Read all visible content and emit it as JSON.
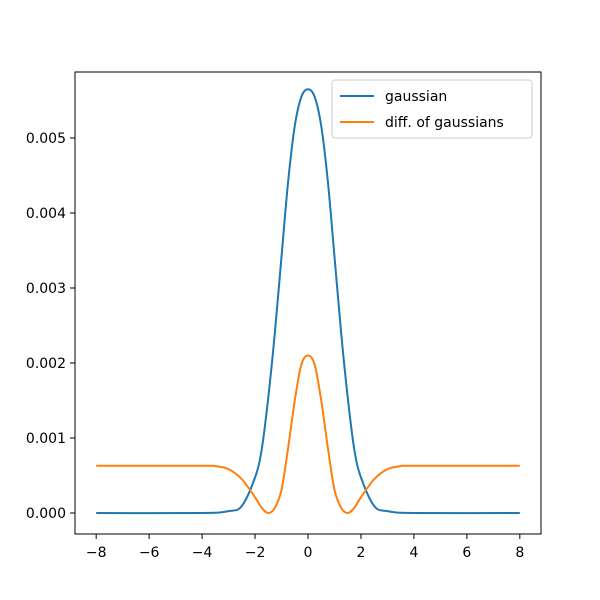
{
  "chart_data": {
    "type": "line",
    "title": "",
    "xlabel": "",
    "ylabel": "",
    "xlim": [
      -8.8,
      8.8
    ],
    "ylim": [
      -0.00028,
      0.00588
    ],
    "grid": false,
    "legend_position": "top-right",
    "x_ticks": [
      -8,
      -6,
      -4,
      -2,
      0,
      2,
      4,
      6,
      8
    ],
    "x_tick_labels": [
      "−8",
      "−6",
      "−4",
      "−2",
      "0",
      "2",
      "4",
      "6",
      "8"
    ],
    "y_ticks": [
      0.0,
      0.001,
      0.002,
      0.003,
      0.004,
      0.005
    ],
    "y_tick_labels": [
      "0.000",
      "0.001",
      "0.002",
      "0.003",
      "0.004",
      "0.005"
    ],
    "series": [
      {
        "name": "gaussian",
        "color": "#1f77b4",
        "x": [
          -8,
          -4,
          -3,
          -2.5,
          -2,
          -1.75,
          -1.5,
          -1.25,
          -1,
          -0.75,
          -0.5,
          -0.25,
          0,
          0.25,
          0.5,
          0.75,
          1,
          1.25,
          1.5,
          1.75,
          2,
          2.5,
          3,
          4,
          8
        ],
        "y": [
          0.0,
          0.0,
          2.5e-05,
          9.4e-05,
          0.000475,
          0.000843,
          0.00154,
          0.00241,
          0.00342,
          0.00442,
          0.00516,
          0.00555,
          0.00565,
          0.00555,
          0.00516,
          0.00442,
          0.00342,
          0.00241,
          0.00154,
          0.000843,
          0.000475,
          9.4e-05,
          2.5e-05,
          0.0,
          0.0
        ]
      },
      {
        "name": "diff. of gaussians",
        "color": "#ff7f0e",
        "x": [
          -8,
          -4,
          -3.5,
          -3,
          -2.5,
          -2,
          -1.75,
          -1.5,
          -1.25,
          -1,
          -0.75,
          -0.5,
          -0.25,
          0,
          0.25,
          0.5,
          0.75,
          1,
          1.25,
          1.5,
          1.75,
          2,
          2.5,
          3,
          3.5,
          4,
          8
        ],
        "y": [
          0.00063,
          0.00063,
          0.000625,
          0.000585,
          0.00045,
          0.00021,
          7e-05,
          0.0,
          7e-05,
          0.00031,
          0.00087,
          0.0015,
          0.00198,
          0.0021,
          0.00198,
          0.0015,
          0.00087,
          0.00031,
          7e-05,
          0.0,
          7e-05,
          0.00021,
          0.00045,
          0.000585,
          0.000625,
          0.00063,
          0.00063
        ]
      }
    ]
  }
}
